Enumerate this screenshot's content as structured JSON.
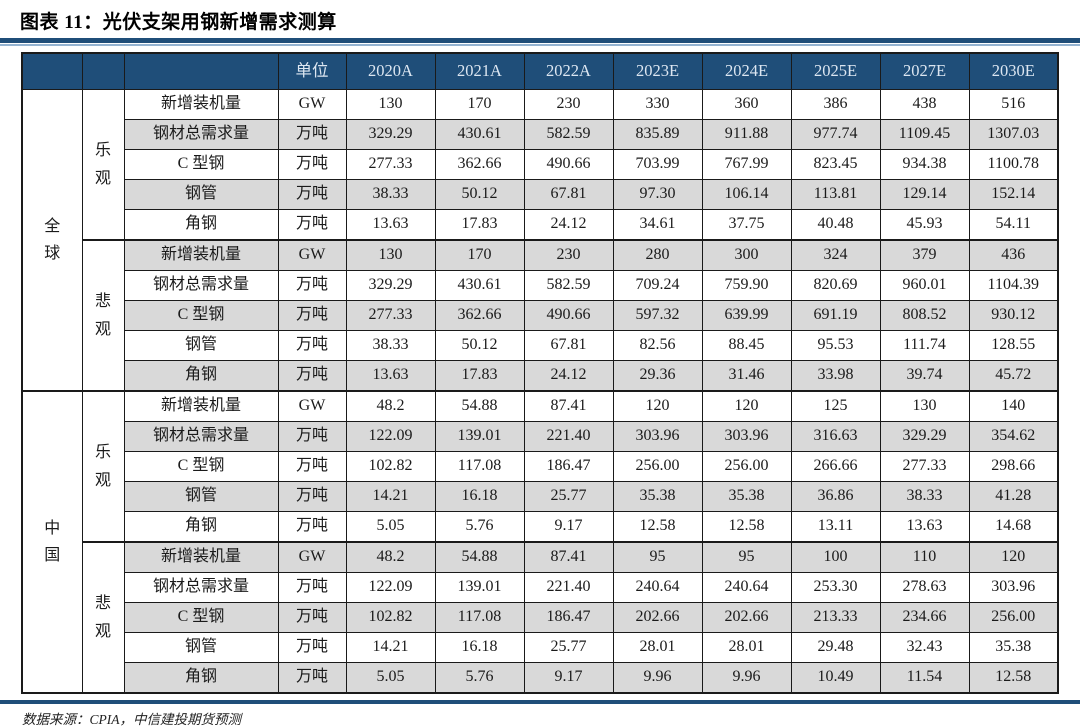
{
  "title": "图表 11：光伏支架用钢新增需求测算",
  "source": "数据来源：CPIA，中信建投期货预测",
  "colors": {
    "header_bg": "#1F4E79",
    "header_text": "#DCE6F1",
    "stripe_gray": "#D9D9D9",
    "accent_rule": "#1F4E79",
    "accent_rule_light": "#94B3D1"
  },
  "table": {
    "unit_header": "单位",
    "year_headers": [
      "2020A",
      "2021A",
      "2022A",
      "2023E",
      "2024E",
      "2025E",
      "2027E",
      "2030E"
    ],
    "row_labels": [
      "新增装机量",
      "钢材总需求量",
      "C 型钢",
      "钢管",
      "角钢"
    ],
    "units": [
      "GW",
      "万吨",
      "万吨",
      "万吨",
      "万吨"
    ],
    "groups": [
      {
        "region": "全球",
        "scenario": "乐观",
        "rows": [
          [
            "130",
            "170",
            "230",
            "330",
            "360",
            "386",
            "438",
            "516"
          ],
          [
            "329.29",
            "430.61",
            "582.59",
            "835.89",
            "911.88",
            "977.74",
            "1109.45",
            "1307.03"
          ],
          [
            "277.33",
            "362.66",
            "490.66",
            "703.99",
            "767.99",
            "823.45",
            "934.38",
            "1100.78"
          ],
          [
            "38.33",
            "50.12",
            "67.81",
            "97.30",
            "106.14",
            "113.81",
            "129.14",
            "152.14"
          ],
          [
            "13.63",
            "17.83",
            "24.12",
            "34.61",
            "37.75",
            "40.48",
            "45.93",
            "54.11"
          ]
        ]
      },
      {
        "region": "全球",
        "scenario": "悲观",
        "rows": [
          [
            "130",
            "170",
            "230",
            "280",
            "300",
            "324",
            "379",
            "436"
          ],
          [
            "329.29",
            "430.61",
            "582.59",
            "709.24",
            "759.90",
            "820.69",
            "960.01",
            "1104.39"
          ],
          [
            "277.33",
            "362.66",
            "490.66",
            "597.32",
            "639.99",
            "691.19",
            "808.52",
            "930.12"
          ],
          [
            "38.33",
            "50.12",
            "67.81",
            "82.56",
            "88.45",
            "95.53",
            "111.74",
            "128.55"
          ],
          [
            "13.63",
            "17.83",
            "24.12",
            "29.36",
            "31.46",
            "33.98",
            "39.74",
            "45.72"
          ]
        ]
      },
      {
        "region": "中国",
        "scenario": "乐观",
        "rows": [
          [
            "48.2",
            "54.88",
            "87.41",
            "120",
            "120",
            "125",
            "130",
            "140"
          ],
          [
            "122.09",
            "139.01",
            "221.40",
            "303.96",
            "303.96",
            "316.63",
            "329.29",
            "354.62"
          ],
          [
            "102.82",
            "117.08",
            "186.47",
            "256.00",
            "256.00",
            "266.66",
            "277.33",
            "298.66"
          ],
          [
            "14.21",
            "16.18",
            "25.77",
            "35.38",
            "35.38",
            "36.86",
            "38.33",
            "41.28"
          ],
          [
            "5.05",
            "5.76",
            "9.17",
            "12.58",
            "12.58",
            "13.11",
            "13.63",
            "14.68"
          ]
        ]
      },
      {
        "region": "中国",
        "scenario": "悲观",
        "rows": [
          [
            "48.2",
            "54.88",
            "87.41",
            "95",
            "95",
            "100",
            "110",
            "120"
          ],
          [
            "122.09",
            "139.01",
            "221.40",
            "240.64",
            "240.64",
            "253.30",
            "278.63",
            "303.96"
          ],
          [
            "102.82",
            "117.08",
            "186.47",
            "202.66",
            "202.66",
            "213.33",
            "234.66",
            "256.00"
          ],
          [
            "14.21",
            "16.18",
            "25.77",
            "28.01",
            "28.01",
            "29.48",
            "32.43",
            "35.38"
          ],
          [
            "5.05",
            "5.76",
            "9.17",
            "9.96",
            "9.96",
            "10.49",
            "11.54",
            "12.58"
          ]
        ]
      }
    ]
  }
}
